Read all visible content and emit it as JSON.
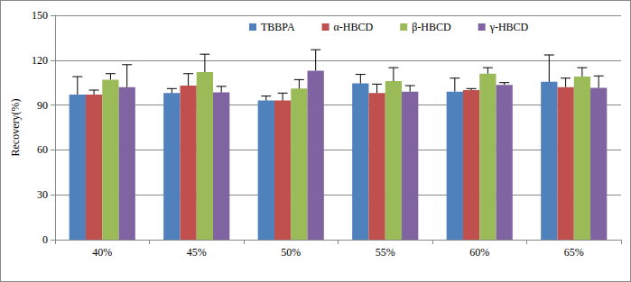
{
  "chart_data": {
    "type": "bar",
    "y_label": "Recovery(%)",
    "categories": [
      "40%",
      "45%",
      "50%",
      "55%",
      "60%",
      "65%"
    ],
    "series": [
      {
        "name": "TBBPA",
        "color": "#4f81bd",
        "values": [
          97,
          98,
          93,
          104.5,
          99,
          105.5
        ],
        "errors": [
          12,
          3,
          3,
          6,
          9,
          18
        ]
      },
      {
        "name": "α-HBCD",
        "color": "#c0504d",
        "values": [
          97,
          103,
          93,
          98,
          100,
          102
        ],
        "errors": [
          3,
          8,
          5,
          6,
          1,
          6
        ]
      },
      {
        "name": "β-HBCD",
        "color": "#9bbb59",
        "values": [
          107,
          112,
          101,
          106,
          111,
          109
        ],
        "errors": [
          4,
          12,
          6,
          9,
          4,
          6
        ]
      },
      {
        "name": "γ-HBCD",
        "color": "#8064a2",
        "values": [
          102,
          98.5,
          113,
          99,
          103.5,
          101.5
        ],
        "errors": [
          15,
          4,
          14,
          4,
          1.5,
          8
        ]
      }
    ],
    "ylim": [
      0,
      150
    ],
    "yticks": [
      0,
      30,
      60,
      90,
      120,
      150
    ],
    "grid": true,
    "legend": "top"
  }
}
